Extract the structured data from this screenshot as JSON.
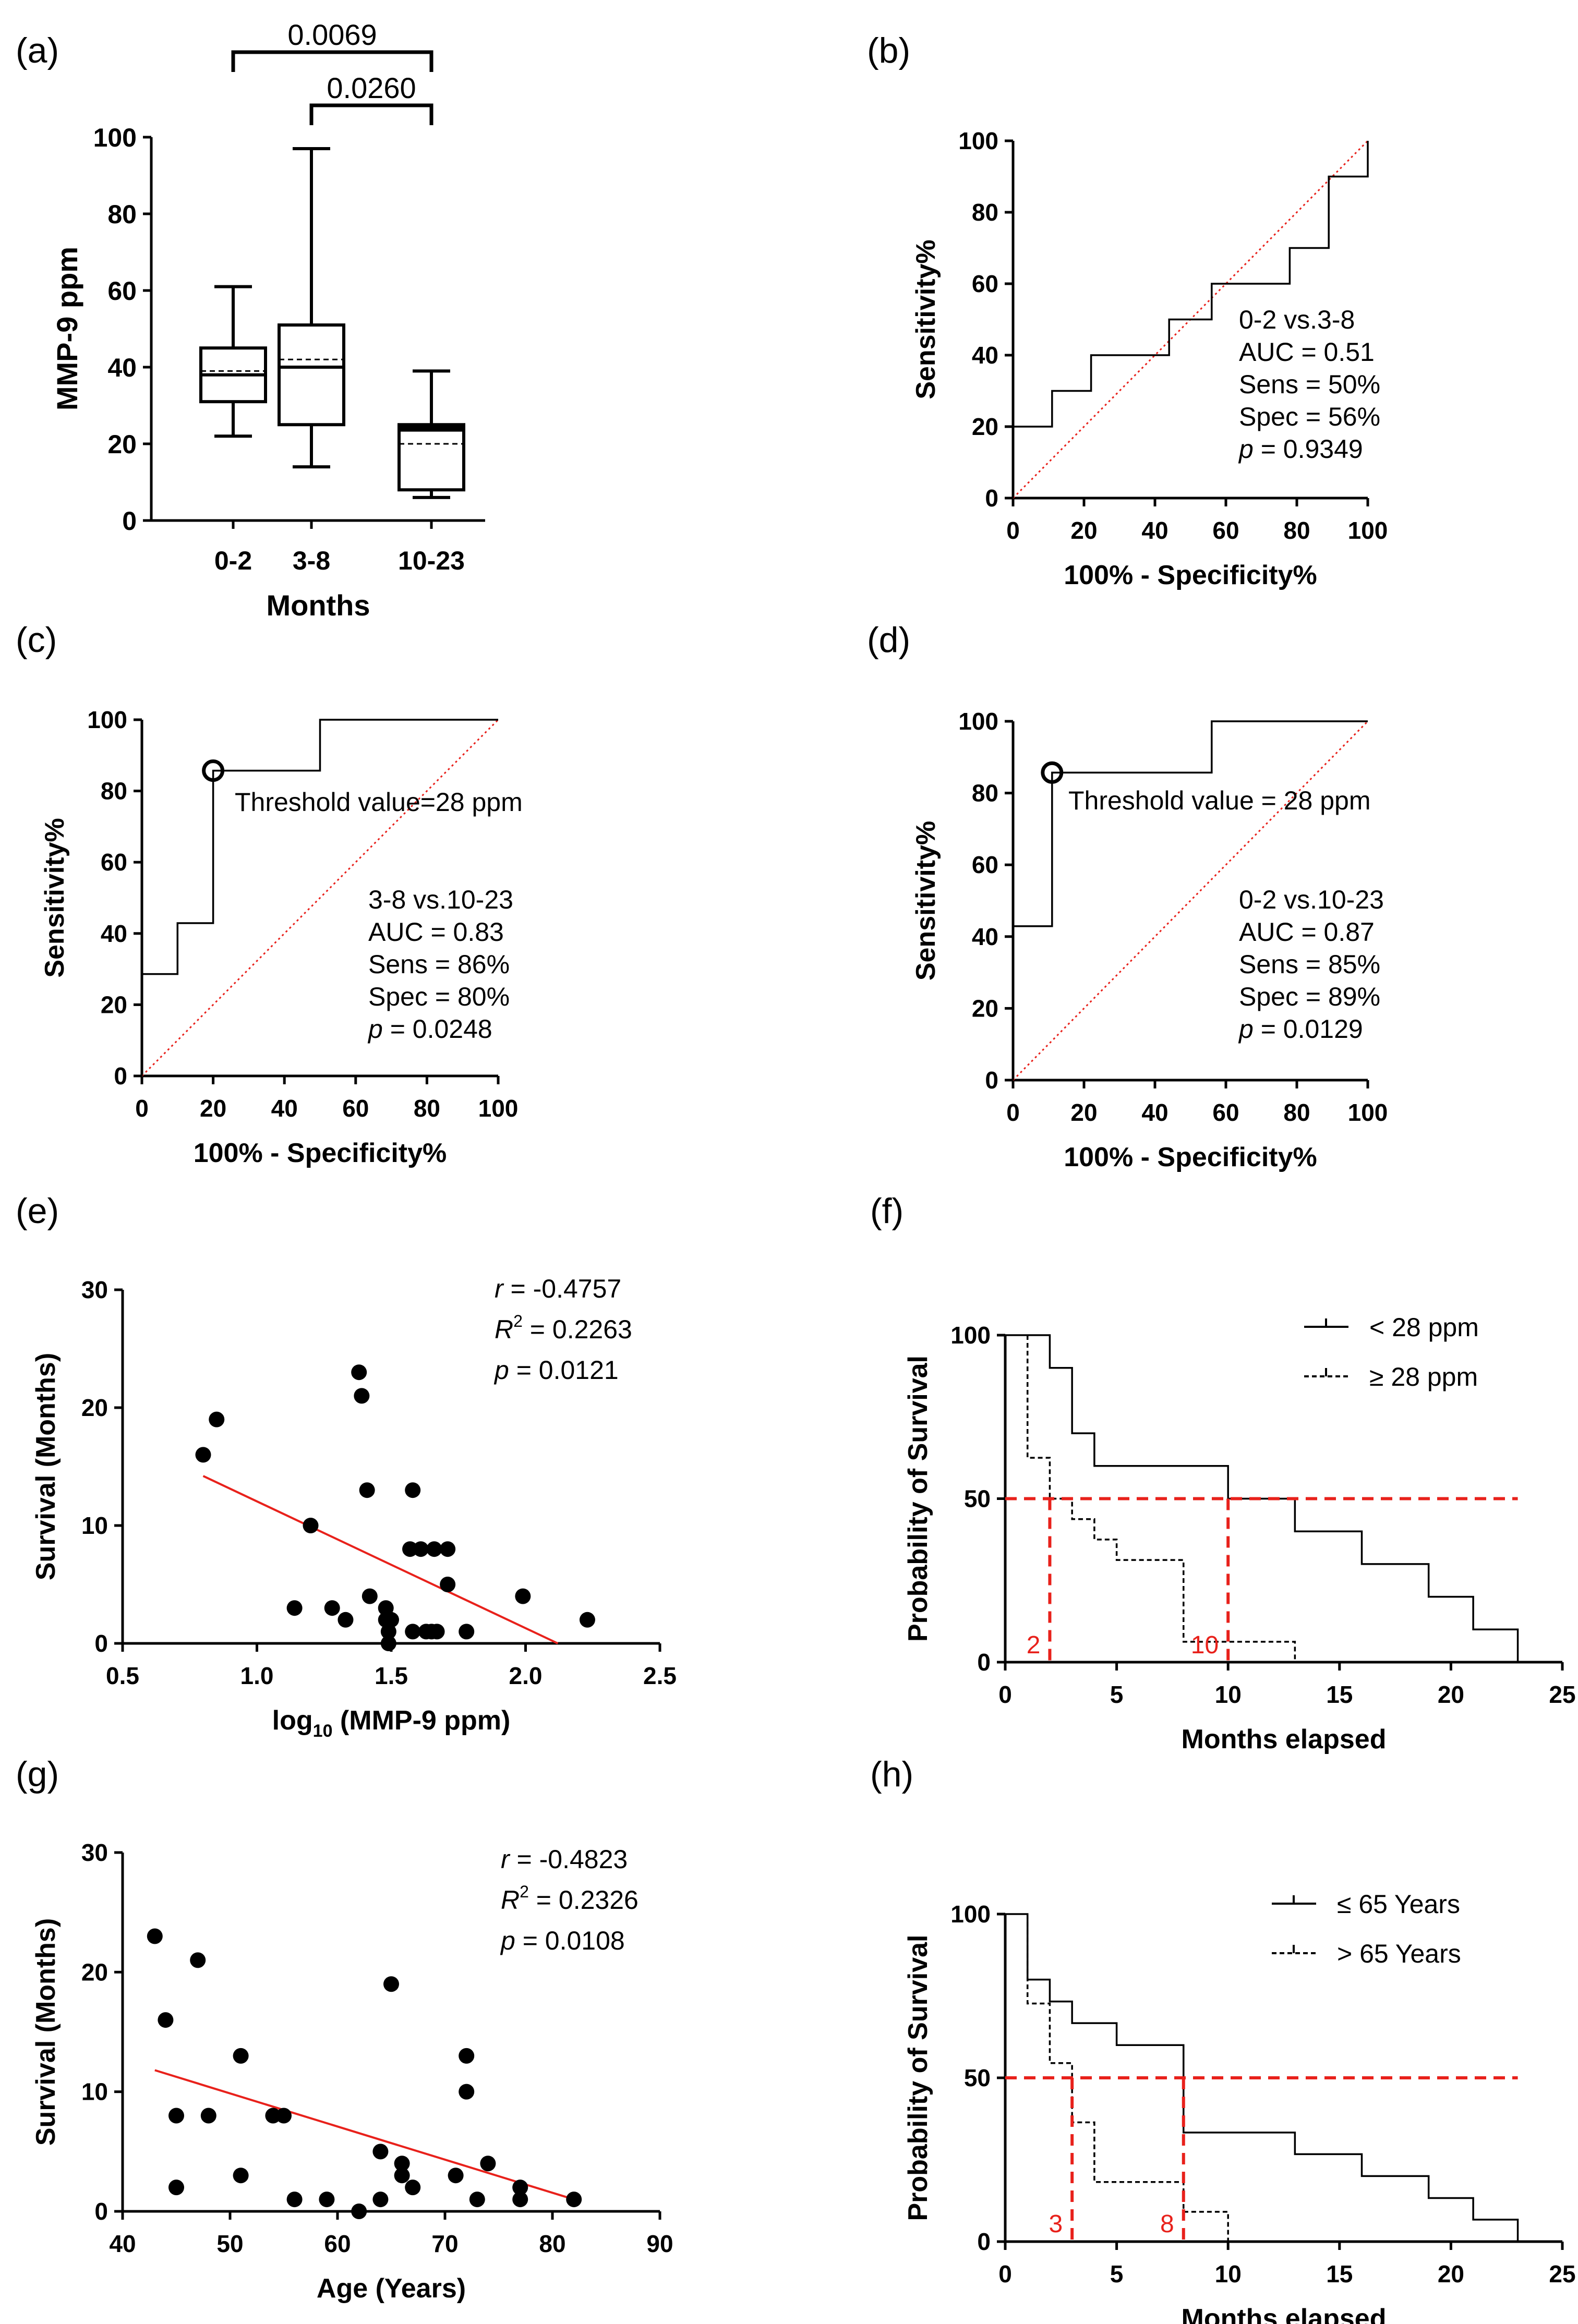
{
  "figure": {
    "panel_count": 8
  },
  "chart_data": [
    {
      "panel": "(a)",
      "type": "box",
      "xlabel": "Months",
      "ylabel": "MMP-9 ppm",
      "ylim": [
        0,
        100
      ],
      "yticks": [
        "0",
        "20",
        "40",
        "60",
        "80",
        "100"
      ],
      "categories": [
        "0-2",
        "3-8",
        "10-23"
      ],
      "boxes": [
        {
          "category": "0-2",
          "min": 22,
          "q1": 31,
          "median": 38,
          "mean": 39,
          "q3": 45,
          "max": 61
        },
        {
          "category": "3-8",
          "min": 14,
          "q1": 25,
          "median": 40,
          "mean": 42,
          "q3": 51,
          "max": 97
        },
        {
          "category": "10-23",
          "min": 6,
          "q1": 8,
          "median": 24,
          "mean": 20,
          "q3": 25,
          "max": 39
        }
      ],
      "brackets": [
        {
          "from": "0-2",
          "to": "10-23",
          "label": "0.0069"
        },
        {
          "from": "3-8",
          "to": "10-23",
          "label": "0.0260"
        }
      ]
    },
    {
      "panel": "(b)",
      "type": "line",
      "xlabel": "100% - Specificity%",
      "ylabel": "Sensitivity%",
      "xlim": [
        0,
        100
      ],
      "ylim": [
        0,
        100
      ],
      "ticks": [
        "0",
        "20",
        "40",
        "60",
        "80",
        "100"
      ],
      "roc_x": [
        0,
        0,
        11,
        11,
        22,
        22,
        44,
        44,
        56,
        56,
        78,
        78,
        89,
        89,
        100,
        100
      ],
      "roc_y": [
        0,
        20,
        20,
        30,
        30,
        40,
        40,
        50,
        50,
        60,
        60,
        70,
        70,
        90,
        90,
        100
      ],
      "stats": [
        "0-2 vs.3-8",
        "AUC = 0.51",
        "Sens = 50%",
        "Spec = 56%",
        "= 0.9349"
      ],
      "p_symbol": "p",
      "threshold_label": ""
    },
    {
      "panel": "(c)",
      "type": "line",
      "xlabel": "100% - Specificity%",
      "ylabel": "Sensitivity%",
      "xlim": [
        0,
        100
      ],
      "ylim": [
        0,
        100
      ],
      "ticks": [
        "0",
        "20",
        "40",
        "60",
        "80",
        "100"
      ],
      "roc_x": [
        0,
        0,
        10,
        10,
        20,
        20,
        50,
        50,
        100
      ],
      "roc_y": [
        0,
        28.6,
        28.6,
        42.9,
        42.9,
        85.7,
        85.7,
        100,
        100
      ],
      "threshold_point": [
        20,
        85.7
      ],
      "threshold_label": "Threshold value=28 ppm",
      "stats": [
        "3-8 vs.10-23",
        "AUC = 0.83",
        "Sens = 86%",
        "Spec = 80%",
        "= 0.0248"
      ],
      "p_symbol": "p"
    },
    {
      "panel": "(d)",
      "type": "line",
      "xlabel": "100% - Specificity%",
      "ylabel": "Sensitivity%",
      "xlim": [
        0,
        100
      ],
      "ylim": [
        0,
        100
      ],
      "ticks": [
        "0",
        "20",
        "40",
        "60",
        "80",
        "100"
      ],
      "roc_x": [
        0,
        0,
        11,
        11,
        56,
        56,
        100
      ],
      "roc_y": [
        0,
        42.9,
        42.9,
        85.7,
        85.7,
        100,
        100
      ],
      "threshold_point": [
        11,
        85.7
      ],
      "threshold_label": "Threshold value = 28 ppm",
      "stats": [
        "0-2 vs.10-23",
        "AUC = 0.87",
        "Sens = 85%",
        "Spec = 89%",
        "= 0.0129"
      ],
      "p_symbol": "p"
    },
    {
      "panel": "(e)",
      "type": "scatter",
      "xlabel_main": "log",
      "xlabel_sub": "10",
      "xlabel_rest": " (MMP-9 ppm)",
      "ylabel": "Survival (Months)",
      "xlim": [
        0.5,
        2.5
      ],
      "ylim": [
        0,
        30
      ],
      "xticks": [
        "0.5",
        "1.0",
        "1.5",
        "2.0",
        "2.5"
      ],
      "yticks": [
        "0",
        "10",
        "20",
        "30"
      ],
      "x": [
        0.8,
        0.85,
        1.14,
        1.2,
        1.28,
        1.33,
        1.38,
        1.39,
        1.41,
        1.42,
        1.48,
        1.48,
        1.49,
        1.49,
        1.5,
        1.57,
        1.58,
        1.58,
        1.61,
        1.63,
        1.65,
        1.66,
        1.67,
        1.71,
        1.71,
        1.78,
        1.99,
        2.23
      ],
      "y": [
        16,
        19,
        3,
        10,
        3,
        2,
        23,
        21,
        13,
        4,
        3,
        2,
        1,
        0,
        2,
        8,
        13,
        1,
        8,
        1,
        1,
        8,
        1,
        8,
        5,
        1,
        4,
        2
      ],
      "fit": {
        "x": [
          0.8,
          2.12
        ],
        "y": [
          14.2,
          0
        ]
      },
      "stats": {
        "r": "= -0.4757",
        "r_symbol": "r",
        "r2": " = 0.2263",
        "r2_symbol": "R",
        "r2_sup": "2",
        "p": " = 0.0121",
        "p_symbol": "p"
      }
    },
    {
      "panel": "(f)",
      "type": "line",
      "xlabel": "Months elapsed",
      "ylabel": "Probability of Survival",
      "xlim": [
        0,
        25
      ],
      "ylim": [
        0,
        100
      ],
      "xticks": [
        "0",
        "5",
        "10",
        "15",
        "20",
        "25"
      ],
      "yticks": [
        "0",
        "50",
        "100"
      ],
      "series": [
        {
          "name": "< 28 ppm",
          "style": "solid",
          "x": [
            0,
            2,
            2,
            3,
            3,
            4,
            4,
            10,
            10,
            13,
            13,
            16,
            16,
            19,
            19,
            21,
            21,
            23,
            23
          ],
          "y": [
            100,
            100,
            90,
            90,
            70,
            70,
            60,
            60,
            50,
            50,
            40,
            40,
            30,
            30,
            20,
            20,
            10,
            10,
            0
          ]
        },
        {
          "name": "≥ 28 ppm",
          "style": "dashed",
          "x": [
            1,
            1,
            2,
            2,
            3,
            3,
            4,
            4,
            5,
            5,
            8,
            8,
            13,
            13
          ],
          "y": [
            100,
            62.5,
            62.5,
            50,
            50,
            43.75,
            43.75,
            37.5,
            37.5,
            31.25,
            31.25,
            6.25,
            6.25,
            0
          ]
        }
      ],
      "median_line": 50,
      "medians": [
        {
          "value": 2,
          "label": "2"
        },
        {
          "value": 10,
          "label": "10"
        }
      ]
    },
    {
      "panel": "(g)",
      "type": "scatter",
      "xlabel": "Age (Years)",
      "ylabel": "Survival (Months)",
      "xlim": [
        40,
        90
      ],
      "ylim": [
        0,
        30
      ],
      "xticks": [
        "40",
        "50",
        "60",
        "70",
        "80",
        "90"
      ],
      "yticks": [
        "0",
        "10",
        "20",
        "30"
      ],
      "x": [
        43,
        44,
        45,
        45,
        47,
        48,
        51,
        51,
        54,
        55,
        56,
        59,
        62,
        64,
        64,
        65,
        66,
        66,
        67,
        71,
        72,
        72,
        73,
        74,
        77,
        77,
        82
      ],
      "y": [
        23,
        16,
        8,
        2,
        21,
        8,
        13,
        3,
        8,
        8,
        1,
        1,
        0,
        5,
        1,
        19,
        4,
        3,
        2,
        3,
        13,
        10,
        1,
        4,
        2,
        1,
        1
      ],
      "fit": {
        "x": [
          43,
          82
        ],
        "y": [
          11.8,
          1.0
        ]
      },
      "stats": {
        "r": "= -0.4823",
        "r_symbol": "r",
        "r2": " = 0.2326",
        "r2_symbol": "R",
        "r2_sup": "2",
        "p": " = 0.0108",
        "p_symbol": "p"
      }
    },
    {
      "panel": "(h)",
      "type": "line",
      "xlabel": "Months elapsed",
      "ylabel": "Probability of Survival",
      "xlim": [
        0,
        25
      ],
      "ylim": [
        0,
        100
      ],
      "xticks": [
        "0",
        "5",
        "10",
        "15",
        "20",
        "25"
      ],
      "yticks": [
        "0",
        "50",
        "100"
      ],
      "series": [
        {
          "name": "≤ 65 Years",
          "style": "solid",
          "x": [
            0,
            1,
            1,
            2,
            2,
            3,
            3,
            5,
            5,
            8,
            8,
            13,
            13,
            16,
            16,
            19,
            19,
            21,
            21,
            23,
            23
          ],
          "y": [
            100,
            100,
            80,
            80,
            73.3,
            73.3,
            66.7,
            66.7,
            60,
            60,
            33.3,
            33.3,
            26.7,
            26.7,
            20,
            20,
            13.3,
            13.3,
            6.7,
            6.7,
            0
          ]
        },
        {
          "name": "> 65 Years",
          "style": "dashed",
          "x": [
            1,
            1,
            2,
            2,
            3,
            3,
            4,
            4,
            8,
            8,
            10,
            10,
            13,
            13
          ],
          "y": [
            100,
            72.7,
            72.7,
            54.5,
            54.5,
            36.4,
            36.4,
            18.2,
            18.2,
            9.1,
            9.1,
            0,
            0,
            0
          ]
        }
      ],
      "median_line": 50,
      "medians": [
        {
          "value": 3,
          "label": "3"
        },
        {
          "value": 8,
          "label": "8"
        }
      ]
    }
  ]
}
